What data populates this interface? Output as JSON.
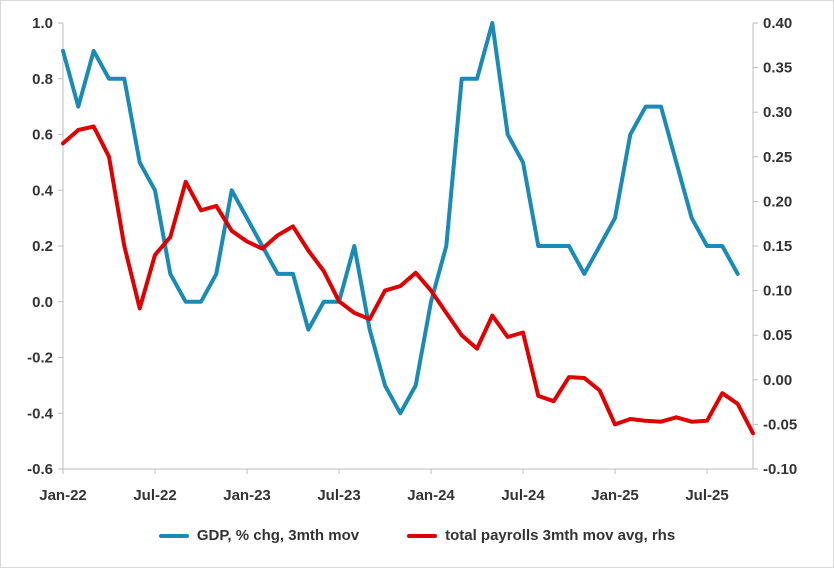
{
  "chart_data": {
    "type": "line",
    "title": "",
    "xlabel": "",
    "ylabel": "",
    "x_tick_labels": [
      "Jan-22",
      "Jul-22",
      "Jan-23",
      "Jul-23",
      "Jan-24",
      "Jul-24",
      "Jan-25",
      "Jul-25"
    ],
    "left_axis": {
      "ylim": [
        -0.6,
        1.0
      ],
      "ticks": [
        "-0.6",
        "-0.4",
        "-0.2",
        "0.0",
        "0.2",
        "0.4",
        "0.6",
        "0.8",
        "1.0"
      ],
      "tick_values": [
        -0.6,
        -0.4,
        -0.2,
        0.0,
        0.2,
        0.4,
        0.6,
        0.8,
        1.0
      ]
    },
    "right_axis": {
      "ylim": [
        -0.1,
        0.4
      ],
      "ticks": [
        "-0.10",
        "-0.05",
        "0.00",
        "0.05",
        "0.10",
        "0.15",
        "0.20",
        "0.25",
        "0.30",
        "0.35",
        "0.40"
      ],
      "tick_values": [
        -0.1,
        -0.05,
        0.0,
        0.05,
        0.1,
        0.15,
        0.2,
        0.25,
        0.3,
        0.35,
        0.4
      ]
    },
    "series": [
      {
        "name": "GDP, % chg, 3mth mov",
        "axis": "left",
        "color": "#1a8ab6",
        "x": [
          0,
          1,
          2,
          3,
          4,
          5,
          6,
          7,
          8,
          9,
          10,
          11,
          12,
          13,
          14,
          15,
          16,
          17,
          18,
          19,
          20,
          21,
          22,
          23,
          24,
          25,
          26,
          27,
          28,
          29,
          30,
          31,
          32,
          33,
          34,
          35,
          36,
          37,
          38,
          39,
          40,
          41,
          42,
          43,
          44
        ],
        "values": [
          0.9,
          0.7,
          0.9,
          0.8,
          0.8,
          0.5,
          0.4,
          0.1,
          0.0,
          0.0,
          0.1,
          0.4,
          0.3,
          0.2,
          0.1,
          0.1,
          -0.1,
          0.0,
          0.0,
          0.2,
          -0.1,
          -0.3,
          -0.4,
          -0.3,
          0.0,
          0.2,
          0.8,
          0.8,
          1.0,
          0.6,
          0.5,
          0.2,
          0.2,
          0.2,
          0.1,
          0.2,
          0.3,
          0.6,
          0.7,
          0.7,
          0.5,
          0.3,
          0.2,
          0.2,
          0.1
        ]
      },
      {
        "name": "total payrolls 3mth mov avg, rhs",
        "axis": "right",
        "color": "#e00000",
        "x": [
          0,
          1,
          2,
          3,
          4,
          5,
          6,
          7,
          8,
          9,
          10,
          11,
          12,
          13,
          14,
          15,
          16,
          17,
          18,
          19,
          20,
          21,
          22,
          23,
          24,
          25,
          26,
          27,
          28,
          29,
          30,
          31,
          32,
          33,
          34,
          35,
          36,
          37,
          38,
          39,
          40,
          41,
          42,
          43,
          44,
          45
        ],
        "values": [
          0.265,
          0.28,
          0.284,
          0.25,
          0.15,
          0.08,
          0.14,
          0.16,
          0.222,
          0.19,
          0.195,
          0.167,
          0.155,
          0.147,
          0.162,
          0.172,
          0.145,
          0.122,
          0.088,
          0.075,
          0.068,
          0.1,
          0.105,
          0.12,
          0.1,
          0.075,
          0.05,
          0.035,
          0.072,
          0.048,
          0.053,
          -0.018,
          -0.024,
          0.003,
          0.002,
          -0.012,
          -0.05,
          -0.044,
          -0.046,
          -0.047,
          -0.042,
          -0.047,
          -0.046,
          -0.015,
          -0.027,
          -0.06
        ]
      }
    ],
    "legend": {
      "position": "bottom",
      "entries": [
        "GDP, % chg, 3mth mov",
        "total payrolls 3mth mov avg, rhs"
      ]
    },
    "grid": false
  }
}
